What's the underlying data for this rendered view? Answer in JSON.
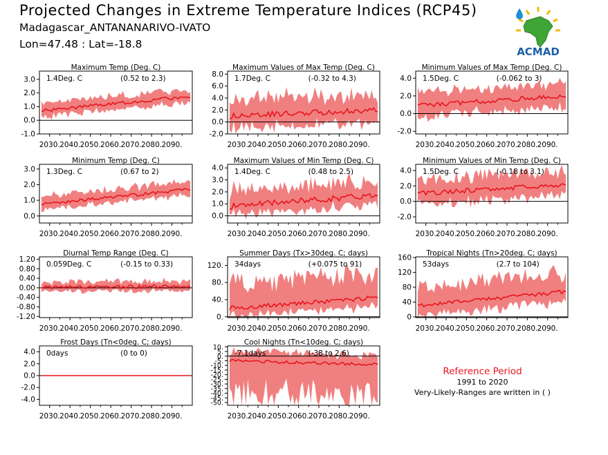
{
  "header": {
    "title": "Projected Changes in Extreme Temperature Indices (RCP45)",
    "location": "Madagascar_ANTANANARIVO-IVATO",
    "coords": "Lon=47.48 : Lat=-18.8"
  },
  "logo": {
    "text": "ACMAD",
    "icon": "africa-map-logo"
  },
  "legend": {
    "title": "Reference Period",
    "years": "1991 to 2020",
    "note": "Very-Likely-Ranges are written in ( )"
  },
  "colors": {
    "band": "#f08080",
    "line": "#e8141c",
    "zero": "#000000"
  },
  "chart_data": [
    {
      "type": "area",
      "title": "Maximum Temp (Deg. C)",
      "value_label": "1.4Deg. C",
      "range_label": "(0.52 to 2.3)",
      "x_ticks": [
        "2030.",
        "2040.",
        "2050.",
        "2060.",
        "2070.",
        "2080.",
        "2090."
      ],
      "y_ticks": [
        "-1.0",
        "0.0",
        "1.0",
        "2.0",
        "3.0"
      ],
      "ylim": [
        -1.0,
        3.6
      ],
      "xlim": [
        2025,
        2100
      ],
      "series": {
        "start": 0.7,
        "end": 1.75,
        "band_lo": 0.45,
        "band_hi": 0.55,
        "noise": 0.12
      }
    },
    {
      "type": "area",
      "title": "Maximum Values of Max Temp (Deg. C)",
      "value_label": "1.7Deg. C",
      "range_label": "(-0.32 to 4.3)",
      "x_ticks": [
        "2030.",
        "2040.",
        "2050.",
        "2060.",
        "2070.",
        "2080.",
        "2090."
      ],
      "y_ticks": [
        "-2.0",
        "0.0",
        "2.0",
        "4.0",
        "6.0",
        "8.0"
      ],
      "ylim": [
        -2.0,
        8.5
      ],
      "xlim": [
        2025,
        2100
      ],
      "series": {
        "start": 1.0,
        "end": 2.0,
        "band_lo": 2.0,
        "band_hi": 2.8,
        "noise": 0.45
      }
    },
    {
      "type": "area",
      "title": "Minimum Values of Max Temp (Deg. C)",
      "value_label": "1.5Deg. C",
      "range_label": "(-0.062 to 3)",
      "x_ticks": [
        "2030.",
        "2040.",
        "2050.",
        "2060.",
        "2070.",
        "2080.",
        "2090."
      ],
      "y_ticks": [
        "-2.0",
        "0.0",
        "2.0",
        "4.0"
      ],
      "ylim": [
        -2.3,
        4.8
      ],
      "xlim": [
        2025,
        2100
      ],
      "series": {
        "start": 0.9,
        "end": 2.0,
        "band_lo": 1.3,
        "band_hi": 1.4,
        "noise": 0.25
      }
    },
    {
      "type": "area",
      "title": "Minimum Temp (Deg. C)",
      "value_label": "1.3Deg. C",
      "range_label": "(0.67 to 2)",
      "x_ticks": [
        "2030.",
        "2040.",
        "2050.",
        "2060.",
        "2070.",
        "2080.",
        "2090."
      ],
      "y_ticks": [
        "0.0",
        "1.0",
        "2.0",
        "3.0"
      ],
      "ylim": [
        -0.45,
        3.3
      ],
      "xlim": [
        2025,
        2100
      ],
      "series": {
        "start": 0.75,
        "end": 1.7,
        "band_lo": 0.35,
        "band_hi": 0.5,
        "noise": 0.1
      }
    },
    {
      "type": "area",
      "title": "Maximum Values of Min Temp (Deg. C)",
      "value_label": "1.4Deg. C",
      "range_label": "(0.48 to 2.5)",
      "x_ticks": [
        "2030.",
        "2040.",
        "2050.",
        "2060.",
        "2070.",
        "2080.",
        "2090."
      ],
      "y_ticks": [
        "0.0",
        "1.0",
        "2.0",
        "3.0",
        "4.0"
      ],
      "ylim": [
        -0.6,
        4.3
      ],
      "xlim": [
        2025,
        2100
      ],
      "series": {
        "start": 0.8,
        "end": 1.75,
        "band_lo": 0.75,
        "band_hi": 1.3,
        "noise": 0.25
      }
    },
    {
      "type": "area",
      "title": "Minimum Values of Min Temp (Deg. C)",
      "value_label": "1.5Deg. C",
      "range_label": "(-0.18 to 3.1)",
      "x_ticks": [
        "2030.",
        "2040.",
        "2050.",
        "2060.",
        "2070.",
        "2080.",
        "2090."
      ],
      "y_ticks": [
        "-2.0",
        "0.0",
        "2.0",
        "4.0"
      ],
      "ylim": [
        -2.8,
        4.8
      ],
      "xlim": [
        2025,
        2100
      ],
      "series": {
        "start": 1.0,
        "end": 2.2,
        "band_lo": 1.4,
        "band_hi": 1.8,
        "noise": 0.3
      }
    },
    {
      "type": "area",
      "title": "Diurnal Temp Range (Deg. C)",
      "value_label": "0.059Deg. C",
      "range_label": "(-0.15 to 0.33)",
      "x_ticks": [
        "2030.",
        "2040.",
        "2050.",
        "2060.",
        "2070.",
        "2080.",
        "2090."
      ],
      "y_ticks": [
        "-1.20",
        "-0.80",
        "-0.40",
        "0.00",
        "0.40",
        "0.80",
        "1.20"
      ],
      "ylim": [
        -1.25,
        1.3
      ],
      "xlim": [
        2025,
        2100
      ],
      "series": {
        "start": 0.02,
        "end": 0.06,
        "band_lo": 0.18,
        "band_hi": 0.22,
        "noise": 0.07
      }
    },
    {
      "type": "area",
      "title": "Summer Days (Tx>30deg. C; days)",
      "value_label": "34days",
      "range_label": "(+0.075 to 91)",
      "x_ticks": [
        "2030.",
        "2040.",
        "2050.",
        "2060.",
        "2070.",
        "2080.",
        "2090."
      ],
      "y_ticks": [
        "0.",
        "40.",
        "80.",
        "120."
      ],
      "ylim": [
        -2,
        140
      ],
      "xlim": [
        2025,
        2100
      ],
      "series": {
        "start": 20,
        "end": 45,
        "band_lo": 20,
        "band_hi": 55,
        "noise": 5
      }
    },
    {
      "type": "area",
      "title": "Tropical Nights (Tn>20deg. C; days)",
      "value_label": "53days",
      "range_label": "(2.7 to 104)",
      "x_ticks": [
        "2030.",
        "2040.",
        "2050.",
        "2060.",
        "2070.",
        "2080.",
        "2090."
      ],
      "y_ticks": [
        "0",
        "40",
        "80",
        "120",
        "160"
      ],
      "ylim": [
        -2,
        162
      ],
      "xlim": [
        2025,
        2100
      ],
      "series": {
        "start": 30,
        "end": 68,
        "band_lo": 28,
        "band_hi": 50,
        "noise": 5
      }
    },
    {
      "type": "area",
      "title": "Frost Days (Tn<0deg. C; days)",
      "value_label": "0days",
      "range_label": "(0 to 0)",
      "x_ticks": [
        "2030.",
        "2040.",
        "2050.",
        "2060.",
        "2070.",
        "2080.",
        "2090."
      ],
      "y_ticks": [
        "-4.0",
        "-2.0",
        "0.0",
        "2.0",
        "4.0"
      ],
      "ylim": [
        -5.0,
        5.0
      ],
      "xlim": [
        2025,
        2100
      ],
      "series": {
        "start": 0,
        "end": 0,
        "band_lo": 0,
        "band_hi": 0,
        "noise": 0
      }
    },
    {
      "type": "area",
      "title": "Cool Nights (Tn<10deg. C; days)",
      "value_label": "-7.1days",
      "range_label": "(-38 to 2.6)",
      "x_ticks": [
        "2030.",
        "2040.",
        "2050.",
        "2060.",
        "2070.",
        "2080.",
        "2090."
      ],
      "y_ticks": [
        "-50.",
        "-45.",
        "-40.",
        "-35.",
        "-30.",
        "-25.",
        "-20.",
        "-15.",
        "-10.",
        "-5.",
        "0.",
        "5.",
        "10."
      ],
      "ylim": [
        -53,
        11
      ],
      "xlim": [
        2025,
        2100
      ],
      "series": {
        "start": -5,
        "end": -9,
        "band_lo": 34,
        "band_hi": 10,
        "noise": 1.5
      }
    }
  ]
}
